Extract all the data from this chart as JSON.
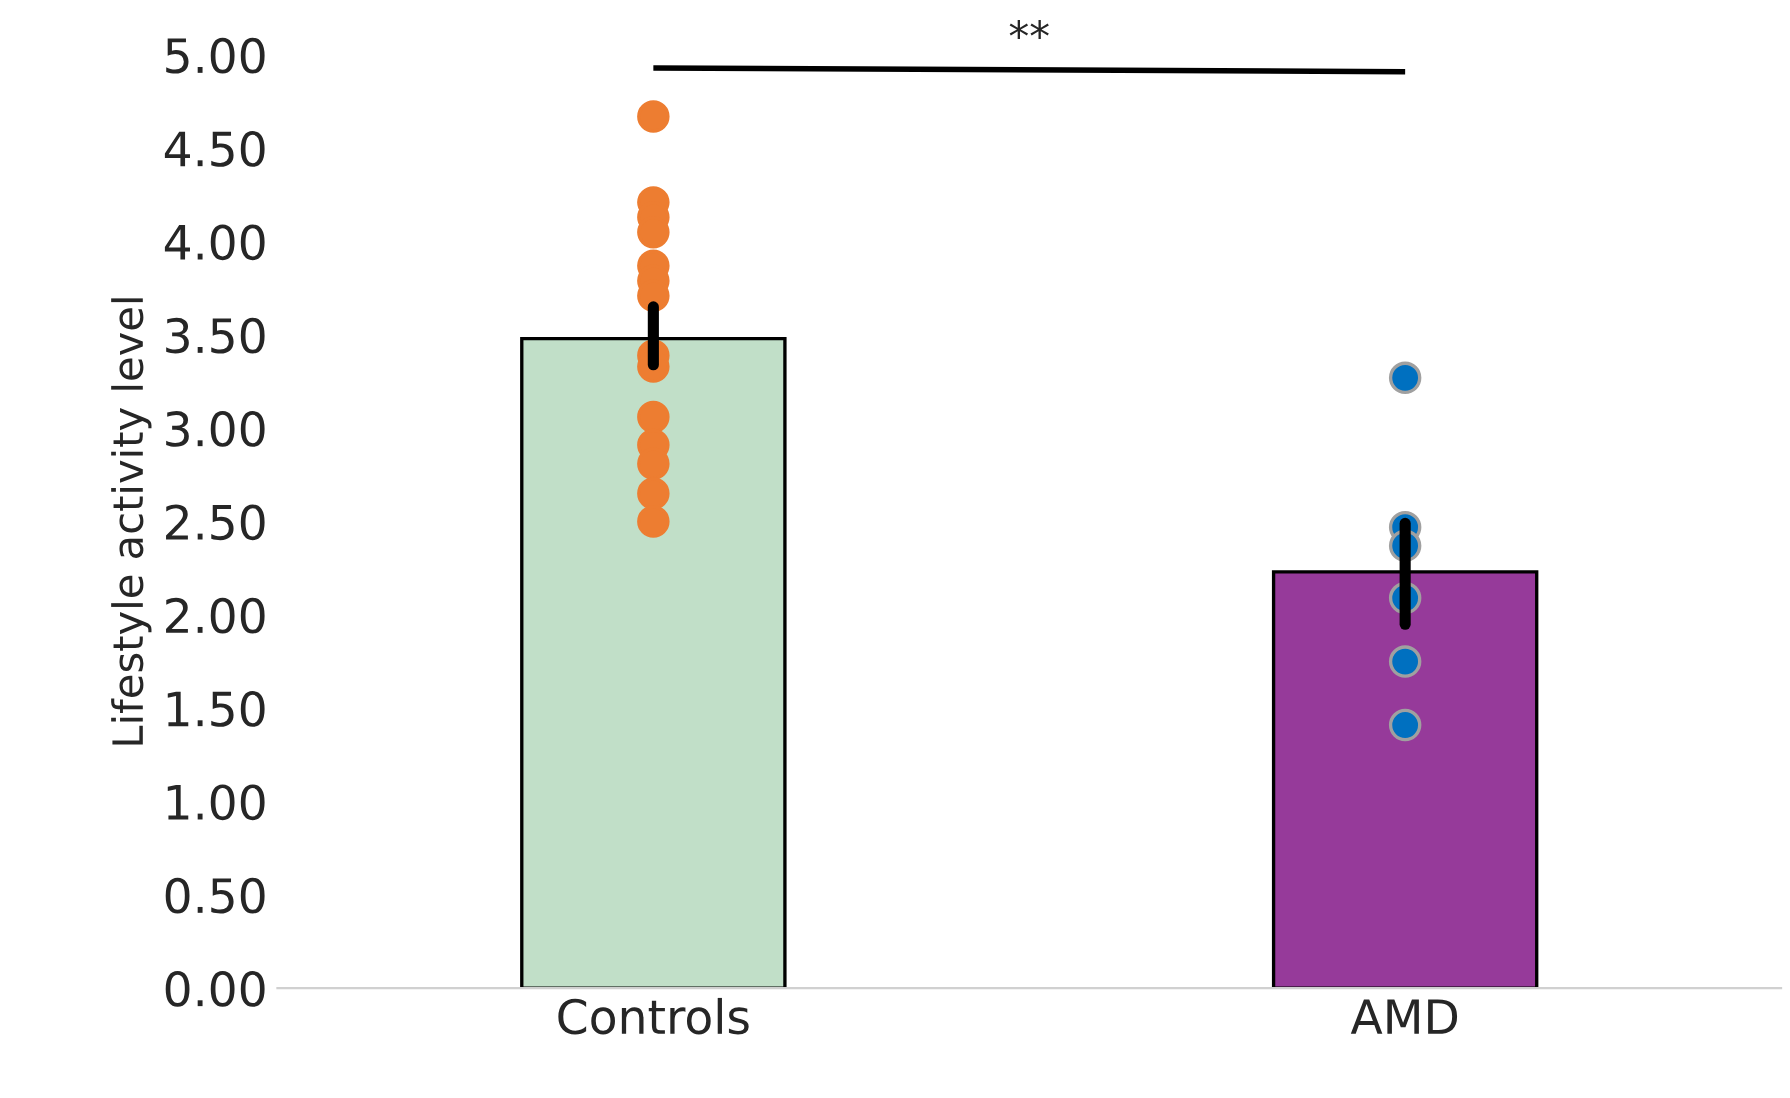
{
  "chart_data": {
    "type": "bar",
    "ylabel": "Lifestyle activity level",
    "categories": [
      "Controls",
      "AMD"
    ],
    "series": [
      {
        "colors": [
          "#c1dfc8",
          "#963a9a"
        ],
        "values": [
          3.48,
          2.23
        ],
        "errors": [
          [
            3.34,
            3.65
          ],
          [
            1.95,
            2.49
          ]
        ]
      },
      {
        "type": "scatter",
        "color": "#ed7d31",
        "x": [
          "Controls",
          "Controls",
          "Controls",
          "Controls",
          "Controls",
          "Controls",
          "Controls",
          "Controls",
          "Controls",
          "Controls",
          "Controls",
          "Controls",
          "Controls",
          "Controls"
        ],
        "values": [
          4.67,
          4.21,
          4.13,
          4.05,
          3.87,
          3.79,
          3.71,
          3.39,
          3.33,
          3.06,
          2.91,
          2.81,
          2.65,
          2.5
        ]
      },
      {
        "type": "scatter",
        "color": "#0070c0",
        "x": [
          "AMD",
          "AMD",
          "AMD",
          "AMD",
          "AMD",
          "AMD"
        ],
        "values": [
          3.27,
          2.47,
          2.37,
          2.09,
          1.75,
          1.41
        ]
      }
    ],
    "ylim": [
      0,
      5
    ],
    "yticks": [
      {
        "value": 0,
        "label": "0.00"
      },
      {
        "value": 0.5,
        "label": "0.50"
      },
      {
        "value": 1,
        "label": "1.00"
      },
      {
        "value": 1.5,
        "label": "1.50"
      },
      {
        "value": 2,
        "label": "2.00"
      },
      {
        "value": 2.5,
        "label": "2.50"
      },
      {
        "value": 3,
        "label": "3.00"
      },
      {
        "value": 3.5,
        "label": "3.50"
      },
      {
        "value": 4,
        "label": "4.00"
      },
      {
        "value": 4.5,
        "label": "4.50"
      },
      {
        "value": 5,
        "label": "5.00"
      }
    ],
    "annotations": [
      "**"
    ],
    "grid": false,
    "legend": false,
    "marker": "circle"
  }
}
